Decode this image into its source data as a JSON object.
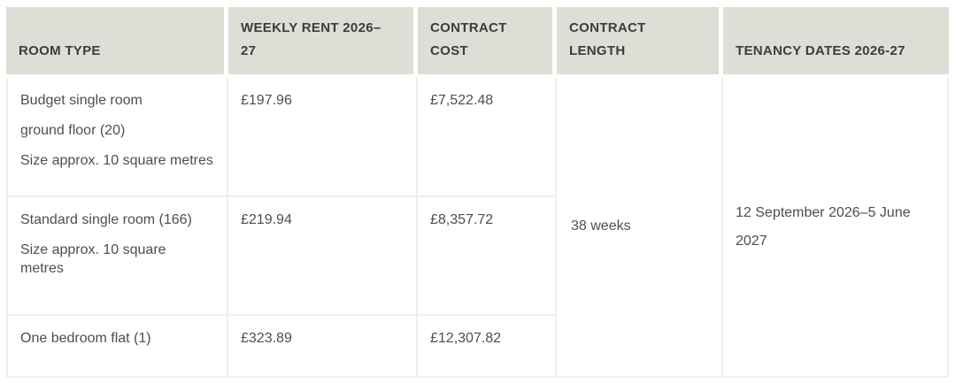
{
  "table": {
    "columns": [
      {
        "label": "ROOM TYPE"
      },
      {
        "label": "WEEKLY RENT 2026–27"
      },
      {
        "label": "CONTRACT COST"
      },
      {
        "label": "CONTRACT LENGTH"
      },
      {
        "label": "TENANCY DATES 2026-27"
      }
    ],
    "rows": [
      {
        "room_type_lines": [
          "Budget single room",
          "ground floor (20)",
          "Size approx. 10 square metres"
        ],
        "weekly_rent": "£197.96",
        "contract_cost": "£7,522.48"
      },
      {
        "room_type_lines": [
          "Standard single room (166)",
          "Size approx. 10 square metres"
        ],
        "weekly_rent": "£219.94",
        "contract_cost": "£8,357.72"
      },
      {
        "room_type_lines": [
          "One bedroom flat (1)"
        ],
        "weekly_rent": "£323.89",
        "contract_cost": "£12,307.82"
      }
    ],
    "merged": {
      "contract_length": "38 weeks",
      "tenancy_dates": "12 September 2026–5 June 2027"
    }
  },
  "colors": {
    "header_background": "#deddd6",
    "header_text": "#3c3c3a",
    "body_text": "#4e4e4c",
    "border": "#f1f0e9",
    "page_background": "#ffffff"
  }
}
